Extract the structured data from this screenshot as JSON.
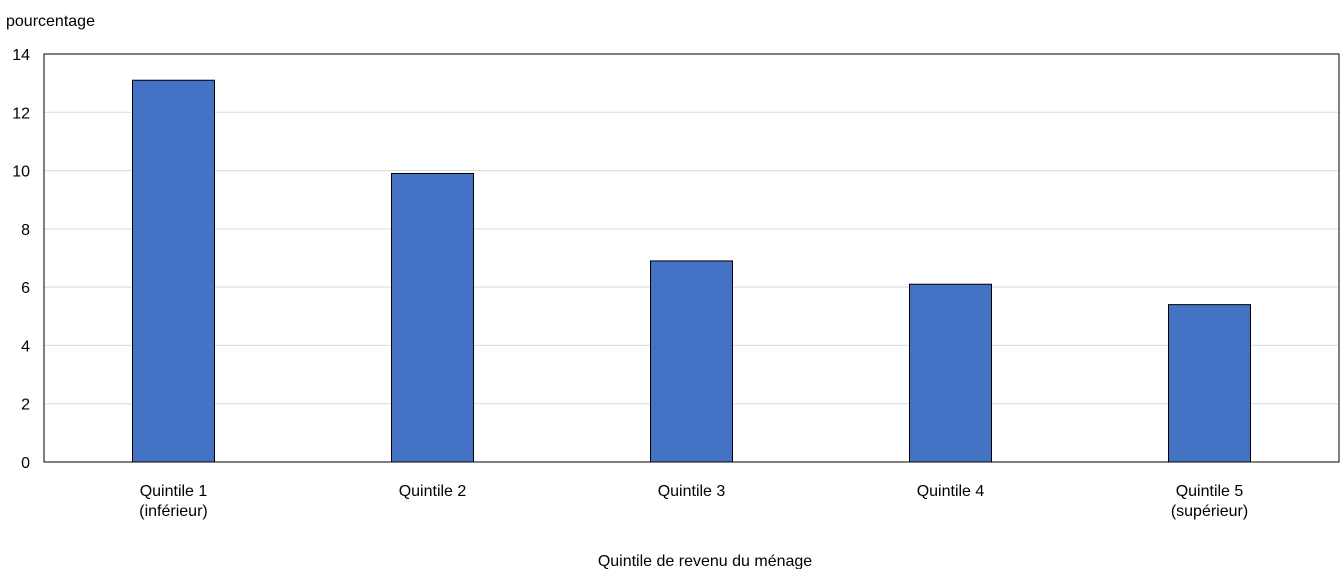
{
  "chart_data": {
    "type": "bar",
    "title": "",
    "ylabel": "pourcentage",
    "xlabel": "Quintile de revenu du ménage",
    "categories": [
      [
        "Quintile 1",
        "(inférieur)"
      ],
      [
        "Quintile 2"
      ],
      [
        "Quintile 3"
      ],
      [
        "Quintile 4"
      ],
      [
        "Quintile 5",
        "(supérieur)"
      ]
    ],
    "values": [
      13.1,
      9.9,
      6.9,
      6.1,
      5.4
    ],
    "ylim": [
      0,
      14
    ],
    "yticks": [
      "0",
      "2",
      "4",
      "6",
      "8",
      "10",
      "12",
      "14"
    ],
    "grid": true,
    "bar_color": "#4472C4",
    "bar_edge_color": "#000000",
    "grid_color": "#d9d9d9"
  }
}
